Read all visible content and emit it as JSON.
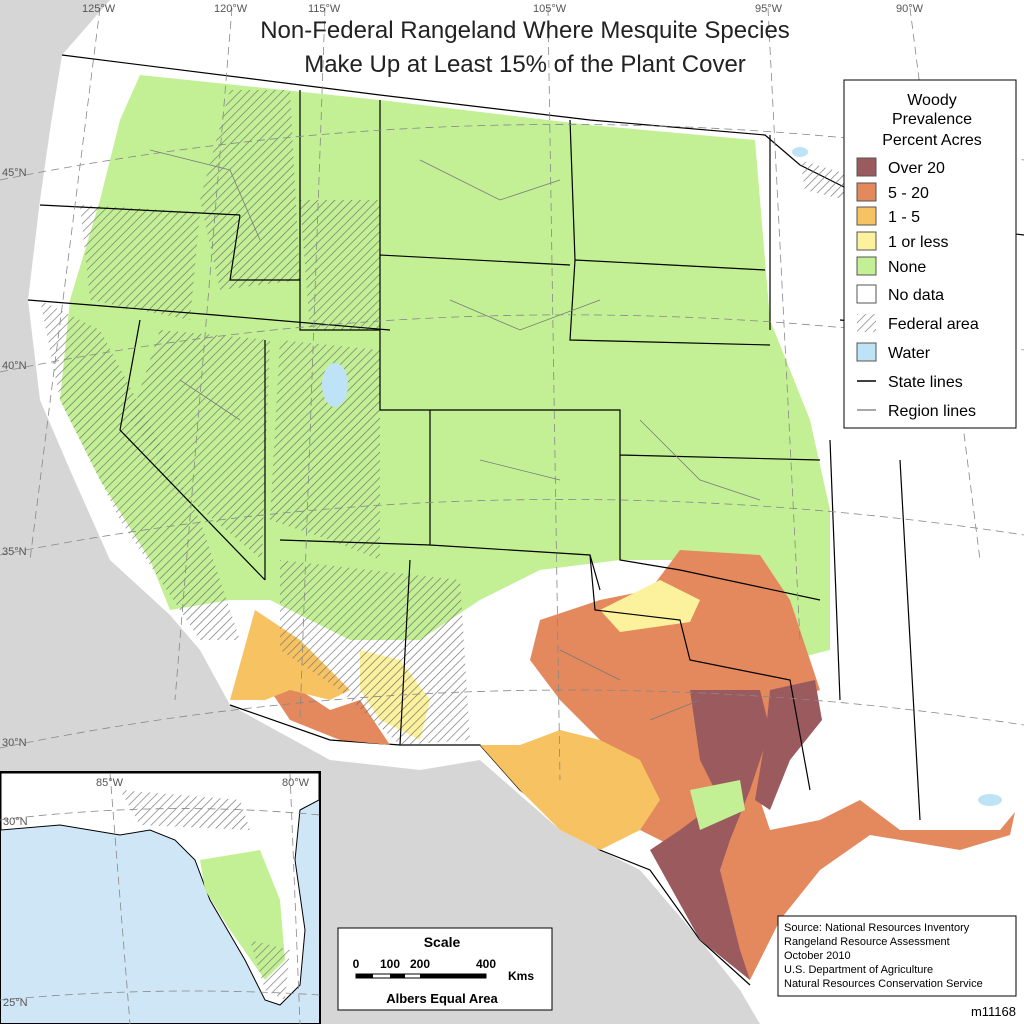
{
  "title": [
    "Non-Federal Rangeland Where Mesquite Species",
    "Make Up at Least 15% of the Plant Cover"
  ],
  "legend": {
    "title": [
      "Woody",
      "Prevalence",
      "Percent Acres"
    ],
    "items": [
      {
        "label": "Over 20",
        "color": "#9b5b5e",
        "kind": "fill"
      },
      {
        "label": "5  -  20",
        "color": "#e3895d",
        "kind": "fill"
      },
      {
        "label": "1  -  5",
        "color": "#f7c261",
        "kind": "fill"
      },
      {
        "label": "1 or less",
        "color": "#fcf19c",
        "kind": "fill"
      },
      {
        "label": "None",
        "color": "#c3f095",
        "kind": "fill"
      },
      {
        "label": "No data",
        "color": "#ffffff",
        "kind": "fill"
      },
      {
        "label": "Federal area",
        "color": "#6e6e6e",
        "kind": "hatch"
      },
      {
        "label": "Water",
        "color": "#bee3f7",
        "kind": "fill"
      },
      {
        "label": "State lines",
        "color": "#000000",
        "kind": "line"
      },
      {
        "label": "Region lines",
        "color": "#8c8c8c",
        "kind": "line"
      }
    ]
  },
  "graticule": {
    "longitudes": [
      "125°W",
      "120°W",
      "115°W",
      "105°W",
      "95°W",
      "90°W"
    ],
    "latitudes": [
      "45°N",
      "40°N",
      "35°N",
      "30°N"
    ]
  },
  "inset": {
    "longitudes": [
      "85°W",
      "80°W"
    ],
    "latitudes": [
      "30°N",
      "25°N"
    ]
  },
  "scale": {
    "title": "Scale",
    "ticks": [
      "0",
      "100",
      "200",
      "400"
    ],
    "unit": "Kms",
    "projection": "Albers Equal Area"
  },
  "source": [
    "Source:  National Resources Inventory",
    "Rangeland Resource Assessment",
    "October 2010",
    "U.S. Department of Agriculture",
    "Natural Resources Conservation Service"
  ],
  "map_id": "m11168"
}
